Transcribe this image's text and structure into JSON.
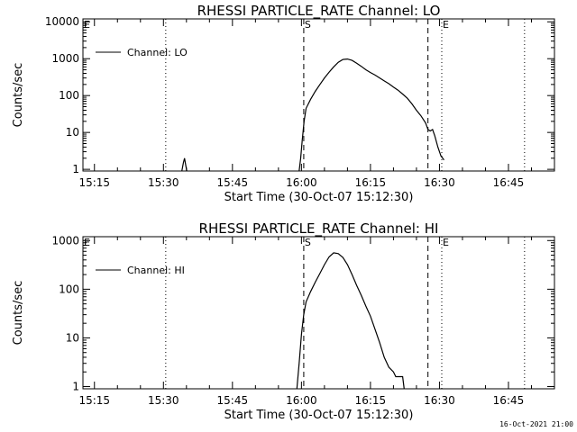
{
  "footer_timestamp": "16-Oct-2021 21:00",
  "chart_data": [
    {
      "type": "line",
      "title": "RHESSI PARTICLE_RATE Channel: LO",
      "xlabel": "Start Time (30-Oct-07 15:12:30)",
      "ylabel": "Counts/sec",
      "y_scale": "log",
      "xlim": [
        "15:12:30",
        "16:55"
      ],
      "ylim": [
        0.9,
        12000
      ],
      "x_ticks": [
        "15:15",
        "15:30",
        "15:45",
        "16:00",
        "16:15",
        "16:30",
        "16:45"
      ],
      "y_ticks": [
        {
          "value": 1,
          "label": "1"
        },
        {
          "value": 10,
          "label": "10"
        },
        {
          "value": 100,
          "label": "100"
        },
        {
          "value": 1000,
          "label": "1000"
        },
        {
          "value": 10000,
          "label": "10000"
        }
      ],
      "legend": {
        "position": "top-left",
        "entries": [
          "Channel: LO"
        ]
      },
      "markers": [
        {
          "label": "E",
          "time": "15:12:30",
          "style": "dotted"
        },
        {
          "label": "",
          "time": "15:30:30",
          "style": "dotted"
        },
        {
          "label": "S",
          "time": "16:00:30",
          "style": "dashed"
        },
        {
          "label": "",
          "time": "16:27:30",
          "style": "dashed"
        },
        {
          "label": "E",
          "time": "16:30:30",
          "style": "dotted"
        },
        {
          "label": "",
          "time": "16:48:30",
          "style": "dotted"
        }
      ],
      "series": [
        {
          "name": "Channel: LO",
          "segments": [
            [
              [
                "15:34:00",
                0.9
              ],
              [
                "15:34:20",
                1.5
              ],
              [
                "15:34:35",
                2.0
              ],
              [
                "15:34:50",
                1.3
              ],
              [
                "15:35:05",
                0.9
              ]
            ],
            [
              [
                "15:59:30",
                0.9
              ],
              [
                "15:59:50",
                2.0
              ],
              [
                "16:00:10",
                6.0
              ],
              [
                "16:00:35",
                20
              ],
              [
                "16:01:00",
                45
              ],
              [
                "16:02:00",
                80
              ],
              [
                "16:03:00",
                130
              ],
              [
                "16:04:00",
                200
              ],
              [
                "16:05:00",
                300
              ],
              [
                "16:06:00",
                430
              ],
              [
                "16:07:00",
                600
              ],
              [
                "16:08:00",
                800
              ],
              [
                "16:09:00",
                950
              ],
              [
                "16:10:00",
                980
              ],
              [
                "16:11:00",
                900
              ],
              [
                "16:12:00",
                750
              ],
              [
                "16:13:00",
                620
              ],
              [
                "16:14:00",
                500
              ],
              [
                "16:15:00",
                420
              ],
              [
                "16:16:00",
                360
              ],
              [
                "16:17:00",
                300
              ],
              [
                "16:18:00",
                250
              ],
              [
                "16:19:00",
                210
              ],
              [
                "16:20:00",
                170
              ],
              [
                "16:21:00",
                140
              ],
              [
                "16:22:00",
                110
              ],
              [
                "16:23:00",
                85
              ],
              [
                "16:24:00",
                60
              ],
              [
                "16:25:00",
                40
              ],
              [
                "16:26:00",
                28
              ],
              [
                "16:27:00",
                18
              ],
              [
                "16:27:30",
                12
              ],
              [
                "16:28:00",
                11
              ],
              [
                "16:28:30",
                12
              ],
              [
                "16:29:00",
                8
              ],
              [
                "16:29:40",
                4
              ],
              [
                "16:30:20",
                2.3
              ],
              [
                "16:31:00",
                1.8
              ]
            ]
          ]
        }
      ]
    },
    {
      "type": "line",
      "title": "RHESSI PARTICLE_RATE Channel: HI",
      "xlabel": "Start Time (30-Oct-07 15:12:30)",
      "ylabel": "Counts/sec",
      "y_scale": "log",
      "xlim": [
        "15:12:30",
        "16:55"
      ],
      "ylim": [
        0.9,
        1200
      ],
      "x_ticks": [
        "15:15",
        "15:30",
        "15:45",
        "16:00",
        "16:15",
        "16:30",
        "16:45"
      ],
      "y_ticks": [
        {
          "value": 1,
          "label": "1"
        },
        {
          "value": 10,
          "label": "10"
        },
        {
          "value": 100,
          "label": "100"
        },
        {
          "value": 1000,
          "label": "1000"
        }
      ],
      "legend": {
        "position": "top-left",
        "entries": [
          "Channel: HI"
        ]
      },
      "markers": [
        {
          "label": "E",
          "time": "15:12:30",
          "style": "dotted"
        },
        {
          "label": "",
          "time": "15:30:30",
          "style": "dotted"
        },
        {
          "label": "S",
          "time": "16:00:30",
          "style": "dashed"
        },
        {
          "label": "",
          "time": "16:27:30",
          "style": "dashed"
        },
        {
          "label": "E",
          "time": "16:30:30",
          "style": "dotted"
        },
        {
          "label": "",
          "time": "16:48:30",
          "style": "dotted"
        }
      ],
      "series": [
        {
          "name": "Channel: HI",
          "segments": [
            [
              [
                "15:59:00",
                0.9
              ],
              [
                "15:59:30",
                3.0
              ],
              [
                "16:00:00",
                12
              ],
              [
                "16:00:30",
                30
              ],
              [
                "16:01:00",
                55
              ],
              [
                "16:02:00",
                90
              ],
              [
                "16:03:00",
                140
              ],
              [
                "16:04:00",
                210
              ],
              [
                "16:05:00",
                320
              ],
              [
                "16:06:00",
                460
              ],
              [
                "16:07:00",
                560
              ],
              [
                "16:08:00",
                540
              ],
              [
                "16:09:00",
                450
              ],
              [
                "16:10:00",
                320
              ],
              [
                "16:11:00",
                200
              ],
              [
                "16:12:00",
                120
              ],
              [
                "16:13:00",
                75
              ],
              [
                "16:14:00",
                45
              ],
              [
                "16:15:00",
                28
              ],
              [
                "16:16:00",
                15
              ],
              [
                "16:17:00",
                8
              ],
              [
                "16:18:00",
                4
              ],
              [
                "16:19:00",
                2.5
              ],
              [
                "16:20:00",
                2.0
              ],
              [
                "16:20:30",
                1.6
              ],
              [
                "16:21:00",
                1.6
              ],
              [
                "16:21:30",
                1.6
              ],
              [
                "16:22:00",
                1.6
              ],
              [
                "16:22:20",
                0.9
              ]
            ]
          ]
        }
      ]
    }
  ]
}
